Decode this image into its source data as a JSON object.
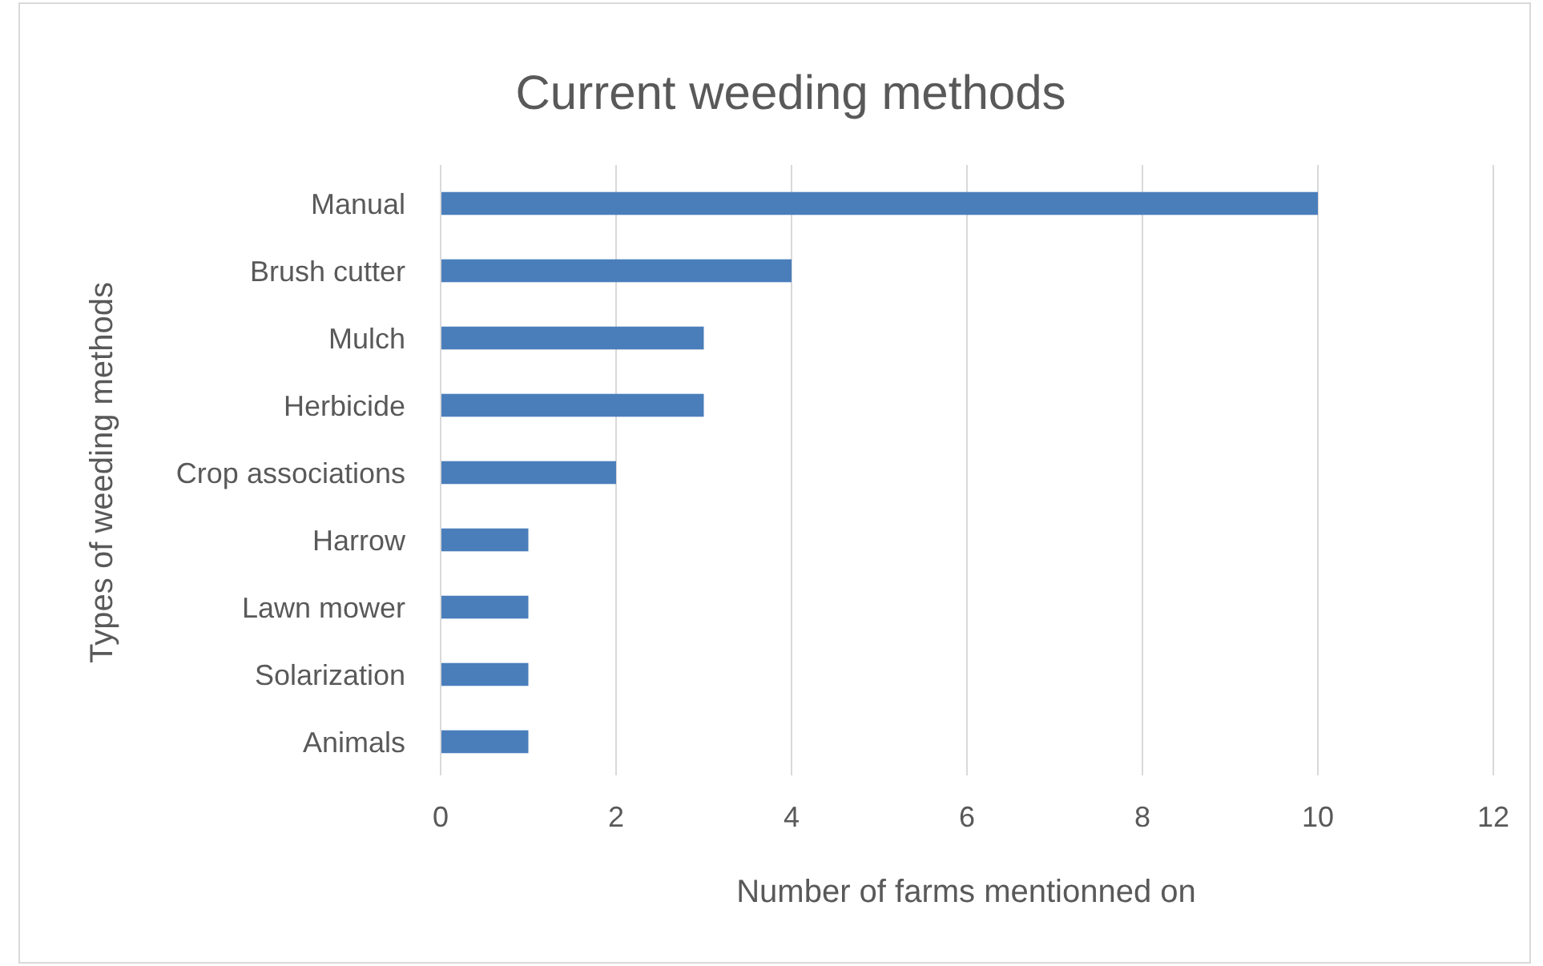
{
  "chart_data": {
    "type": "bar",
    "orientation": "horizontal",
    "title": "Current weeding methods",
    "xlabel": "Number of farms mentionned on",
    "ylabel": "Types of weeding methods",
    "categories": [
      "Manual",
      "Brush cutter",
      "Mulch",
      "Herbicide",
      "Crop associations",
      "Harrow",
      "Lawn mower",
      "Solarization",
      "Animals"
    ],
    "values": [
      10,
      4,
      3,
      3,
      2,
      1,
      1,
      1,
      1
    ],
    "color": "#4a7ebb",
    "xlim": [
      0,
      12
    ],
    "xticks": [
      0,
      2,
      4,
      6,
      8,
      10,
      12
    ],
    "grid": "x"
  }
}
